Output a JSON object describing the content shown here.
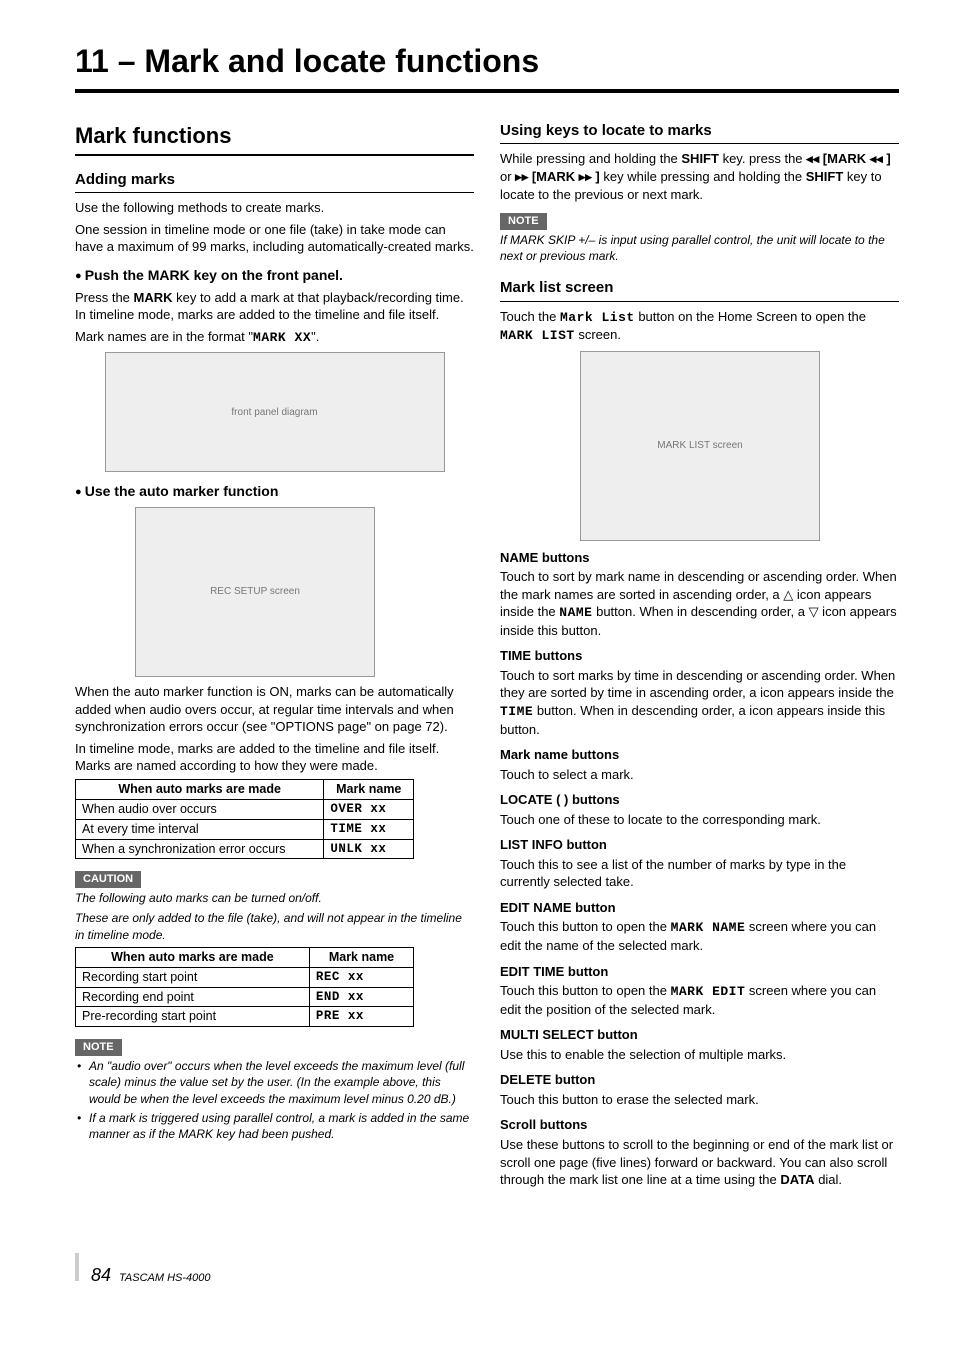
{
  "chapter": "11 – Mark and locate functions",
  "left": {
    "h2": "Mark functions",
    "addingMarks": {
      "h3": "Adding marks",
      "p1": "Use the following methods to create marks.",
      "p2": "One session in timeline mode or one file (take) in take mode can have a maximum of 99 marks, including automatically-created marks.",
      "pushMark": {
        "h4": "Push the MARK key on the front panel.",
        "p1a": "Press the ",
        "p1_mark": "MARK",
        "p1b": " key to add a mark at that playback/recording time. In timeline mode, marks are added to the timeline and file itself.",
        "p2a": "Mark names are in the format \"",
        "p2_fmt": "MARK XX",
        "p2b": "\"."
      },
      "autoMarker": {
        "h4": "Use the auto marker function",
        "p1": "When the auto marker function is ON, marks can be automatically added when audio overs occur, at regular time intervals and when synchronization errors occur (see \"OPTIONS page\" on page 72).",
        "p2": "In timeline mode, marks are added to the timeline and file itself. Marks are named according to how they were made.",
        "table1": {
          "headers": [
            "When auto marks are made",
            "Mark name"
          ],
          "rows": [
            [
              "When audio over occurs",
              "OVER xx"
            ],
            [
              "At every time interval",
              "TIME xx"
            ],
            [
              "When a synchronization error occurs",
              "UNLK xx"
            ]
          ]
        },
        "caution": "CAUTION",
        "cautionP1": "The following auto marks can be turned on/off.",
        "cautionP2": "These are only added to the file (take), and will not appear in the timeline in timeline mode.",
        "table2": {
          "headers": [
            "When auto marks are made",
            "Mark name"
          ],
          "rows": [
            [
              "Recording start point",
              "REC xx"
            ],
            [
              "Recording end point",
              "END xx"
            ],
            [
              "Pre-recording start point",
              "PRE xx"
            ]
          ]
        },
        "note": "NOTE",
        "noteLi1": "An \"audio over\" occurs when the level exceeds the maximum level (full scale) minus the value set by the user. (In the example above, this would be when the level exceeds the maximum level minus 0.20 dB.)",
        "noteLi2": "If a mark is triggered using parallel control, a mark is added in the same manner as if the MARK key had been pushed."
      }
    }
  },
  "right": {
    "usingKeys": {
      "h3": "Using keys to locate to marks",
      "p1a": "While pressing and holding the ",
      "shift": "SHIFT",
      "p1b": " key. press the ",
      "k1": "◂◂ [MARK ◂◂ ]",
      "or": " or ",
      "k2": "▸▸ [MARK ▸▸ ]",
      "p1c": " key while pressing and holding the ",
      "p1d": " key to locate to the previous or next mark.",
      "note": "NOTE",
      "noteP": "If MARK SKIP +/– is input using parallel control, the unit will locate to the next or previous mark."
    },
    "markList": {
      "h3": "Mark list screen",
      "p1a": "Touch the ",
      "p1btn": "Mark List",
      "p1b": " button on the Home Screen to open the ",
      "p1scr": "MARK LIST",
      "p1c": " screen.",
      "name": {
        "h": "NAME buttons",
        "p1": "Touch to sort by mark name in descending or ascending order. When the mark names are sorted in ascending order, a  △  icon appears inside the ",
        "btn": "NAME",
        "p2": " button. When in descending order, a ▽  icon appears inside this button."
      },
      "time": {
        "h": "TIME buttons",
        "p1": "Touch to sort marks by time in descending or ascending order. When they are sorted by time in ascending order, a       icon appears inside the ",
        "btn": "TIME",
        "p2": " button. When in descending order, a       icon appears inside this button."
      },
      "markName": {
        "h": "Mark name buttons",
        "p": "Touch to select a mark."
      },
      "locate": {
        "h": "LOCATE (        ) buttons",
        "p": "Touch one of these to locate to the corresponding mark."
      },
      "listInfo": {
        "h": "LIST INFO button",
        "p": "Touch this to see a list of the number of marks by type in the currently selected take."
      },
      "editName": {
        "h": "EDIT NAME button",
        "p1": "Touch this button to open the ",
        "scr": "MARK NAME",
        "p2": " screen where you can edit the name of the selected mark."
      },
      "editTime": {
        "h": "EDIT TIME button",
        "p1": "Touch this button to open the ",
        "scr": "MARK EDIT",
        "p2": " screen where you can edit the position of the selected mark."
      },
      "multi": {
        "h": "MULTI SELECT button",
        "p": "Use this to enable the selection of multiple marks."
      },
      "delete": {
        "h": "DELETE button",
        "p": "Touch this button to erase the selected mark."
      },
      "scroll": {
        "h": "Scroll buttons",
        "p1": "Use these buttons to scroll to the beginning or end of the mark list or scroll one page (five lines) forward or backward. You can also scroll through the mark list one line at a time using the ",
        "data": "DATA",
        "p2": " dial."
      }
    }
  },
  "footer": {
    "page": "84",
    "model": "TASCAM HS-4000"
  }
}
